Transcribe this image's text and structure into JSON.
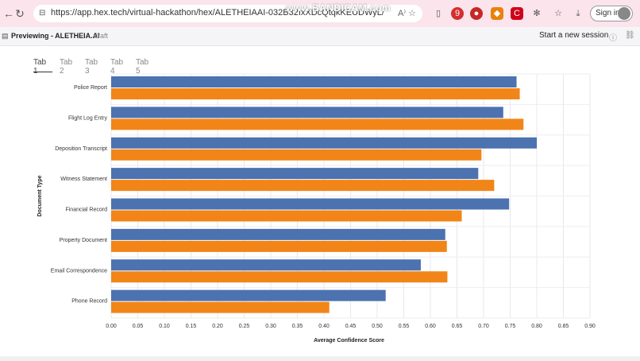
{
  "browser": {
    "url": "https://app.hex.tech/virtual-hackathon/hex/ALETHEIAAI-032B32IxXDcQtqkKEUDWyL/draft/logic...",
    "watermark": "www.BANDICAM.com",
    "sign_in_label": "Sign in",
    "ext_badge": "9"
  },
  "app": {
    "title": "Previewing - ALETHEIA.AI",
    "status": "draft",
    "session_label": "Start a new session"
  },
  "tabs": [
    "Tab 1",
    "Tab 2",
    "Tab 3",
    "Tab 4",
    "Tab 5"
  ],
  "chart_data": {
    "type": "bar",
    "orientation": "horizontal",
    "categories": [
      "Police Report",
      "Flight Log Entry",
      "Deposition Transcript",
      "Witness Statement",
      "Financial Record",
      "Property Document",
      "Email Correspondence",
      "Phone Record"
    ],
    "series": [
      {
        "color": "#4c72b0",
        "values": [
          0.762,
          0.737,
          0.8,
          0.69,
          0.748,
          0.628,
          0.582,
          0.516
        ]
      },
      {
        "color": "#f28518",
        "values": [
          0.768,
          0.775,
          0.696,
          0.72,
          0.659,
          0.631,
          0.632,
          0.41
        ]
      }
    ],
    "xlabel": "Average Confidence Score",
    "ylabel": "Document Type",
    "xlim": [
      0,
      0.9
    ],
    "xticks": [
      "0.00",
      "0.05",
      "0.10",
      "0.15",
      "0.20",
      "0.25",
      "0.30",
      "0.35",
      "0.40",
      "0.45",
      "0.50",
      "0.55",
      "0.60",
      "0.65",
      "0.70",
      "0.75",
      "0.80",
      "0.85",
      "0.90"
    ],
    "grid": true
  }
}
